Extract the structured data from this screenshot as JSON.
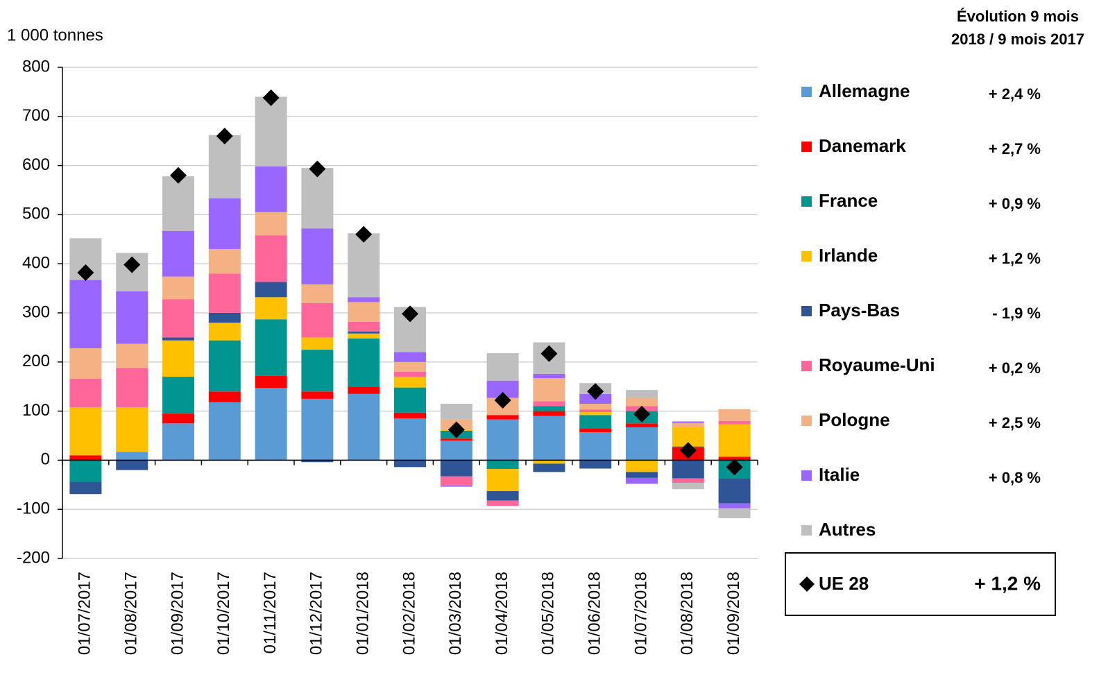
{
  "chart_data": {
    "type": "stacked_bar",
    "y_label": "1 000 tonnes",
    "legend_title": [
      "Évolution 9 mois",
      "2018 / 9 mois 2017"
    ],
    "categories": [
      "01/07/2017",
      "01/08/2017",
      "01/09/2017",
      "01/10/2017",
      "01/11/2017",
      "01/12/2017",
      "01/01/2018",
      "01/02/2018",
      "01/03/2018",
      "01/04/2018",
      "01/05/2018",
      "01/06/2018",
      "01/07/2018",
      "01/08/2018",
      "01/09/2018"
    ],
    "ylim": [
      -200,
      800
    ],
    "yticks": [
      -200,
      -100,
      0,
      100,
      200,
      300,
      400,
      500,
      600,
      700,
      800
    ],
    "grid": true,
    "series": [
      {
        "name": "Allemagne",
        "color": "#5b9bd5",
        "evolution": "+ 2,4 %",
        "values": [
          0,
          17,
          75,
          118,
          147,
          125,
          135,
          85,
          40,
          83,
          90,
          57,
          67,
          0,
          0
        ]
      },
      {
        "name": "Danemark",
        "color": "#ff0000",
        "evolution": "+ 2,7 %",
        "values": [
          10,
          0,
          20,
          22,
          25,
          15,
          15,
          12,
          4,
          9,
          10,
          8,
          8,
          27,
          7
        ]
      },
      {
        "name": "France",
        "color": "#00968f",
        "evolution": "+ 0,9 %",
        "values": [
          -44,
          0,
          75,
          104,
          115,
          85,
          98,
          51,
          16,
          -18,
          10,
          27,
          25,
          1,
          -37
        ]
      },
      {
        "name": "Irlande",
        "color": "#ffc000",
        "evolution": "+ 1,2 %",
        "values": [
          98,
          91,
          74,
          36,
          45,
          25,
          10,
          22,
          3,
          -45,
          -7,
          6,
          -24,
          39,
          66
        ]
      },
      {
        "name": "Pays-Bas",
        "color": "#2f5597",
        "evolution": "- 1,9 %",
        "values": [
          -25,
          -20,
          6,
          20,
          31,
          -4,
          4,
          -14,
          -33,
          -19,
          -17,
          -17,
          -12,
          -37,
          -51
        ]
      },
      {
        "name": "Royaume-Uni",
        "color": "#ff6699",
        "evolution": "+ 0,2 %",
        "values": [
          58,
          80,
          78,
          80,
          95,
          70,
          20,
          10,
          -19,
          -11,
          10,
          5,
          10,
          -9,
          7
        ]
      },
      {
        "name": "Pologne",
        "color": "#f4b183",
        "evolution": "+ 2,5 %",
        "values": [
          62,
          49,
          46,
          50,
          47,
          38,
          40,
          20,
          20,
          35,
          47,
          12,
          17,
          9,
          24
        ]
      },
      {
        "name": "Italie",
        "color": "#9966ff",
        "evolution": "+ 0,8 %",
        "values": [
          139,
          107,
          93,
          103,
          93,
          114,
          10,
          20,
          -2,
          35,
          9,
          20,
          -12,
          3,
          -10
        ]
      },
      {
        "name": "Autres",
        "color": "#bfbfbf",
        "values": [
          85,
          78,
          111,
          129,
          142,
          123,
          130,
          92,
          32,
          56,
          64,
          22,
          16,
          -13,
          -20
        ]
      }
    ],
    "total": {
      "name": "UE 28",
      "color": "#000000",
      "evolution": "+ 1,2 %",
      "values": [
        382,
        398,
        580,
        660,
        738,
        593,
        460,
        298,
        62,
        122,
        217,
        140,
        94,
        20,
        -14
      ]
    }
  }
}
